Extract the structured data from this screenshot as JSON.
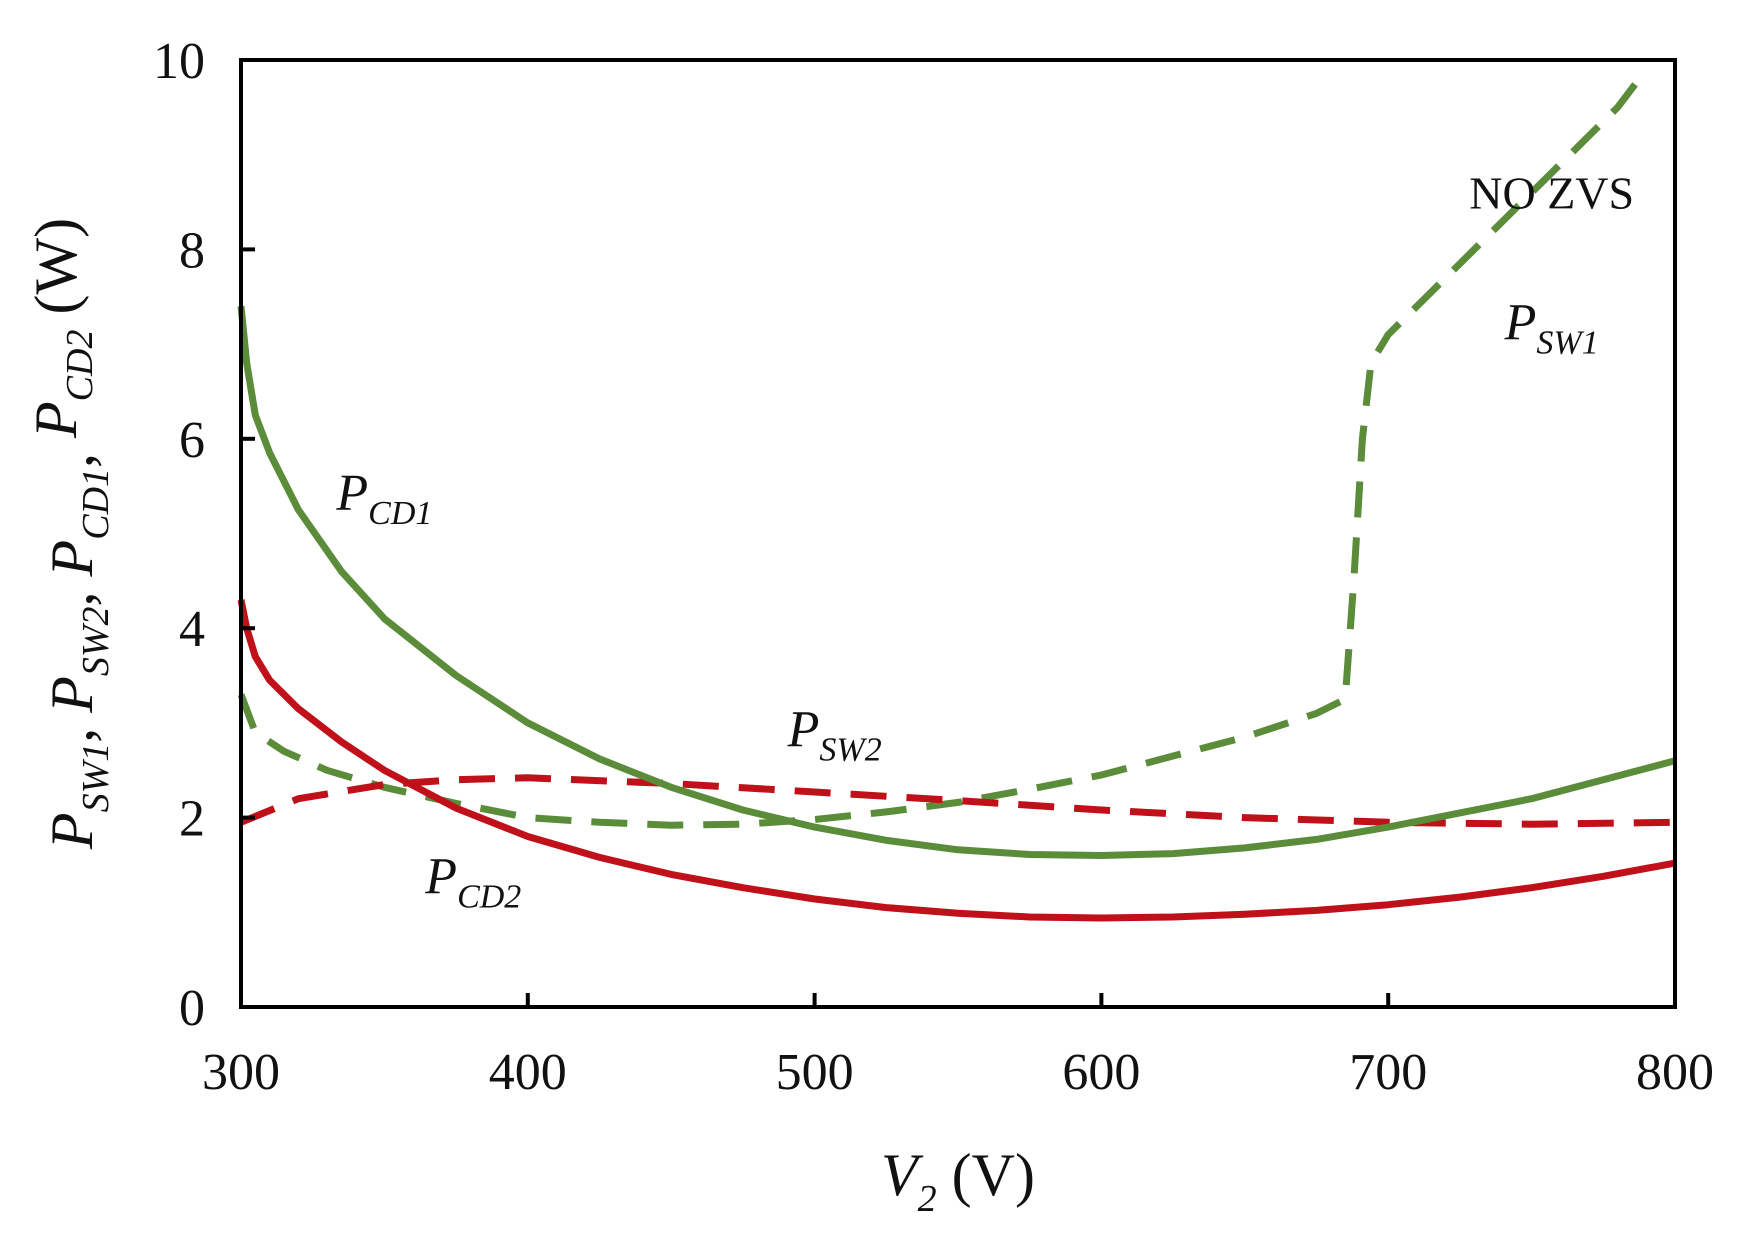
{
  "chart_data": {
    "type": "line",
    "title": "",
    "xlabel": {
      "main": "V",
      "sub": "2",
      "unit": " (V)"
    },
    "ylabel": {
      "parts": [
        {
          "main": "P",
          "sub": "SW1"
        },
        {
          "main": "P",
          "sub": "SW2"
        },
        {
          "main": "P",
          "sub": "CD1"
        },
        {
          "main": "P",
          "sub": "CD2"
        }
      ],
      "separator": ", ",
      "unit": " (W)"
    },
    "xlim": [
      300,
      800
    ],
    "ylim": [
      0,
      10
    ],
    "x_ticks": [
      300,
      400,
      500,
      600,
      700,
      800
    ],
    "y_ticks": [
      0,
      2,
      4,
      6,
      8,
      10
    ],
    "grid": false,
    "legend": "none",
    "series": [
      {
        "name": "P_SW1",
        "label": {
          "main": "P",
          "sub": "SW1"
        },
        "color": "#5b8c3a",
        "style": "dashed",
        "x": [
          300,
          305,
          315,
          330,
          350,
          375,
          400,
          425,
          450,
          475,
          500,
          525,
          550,
          575,
          600,
          625,
          650,
          675,
          685,
          688,
          691,
          694,
          700,
          720,
          740,
          760,
          780,
          790
        ],
        "y": [
          3.3,
          2.9,
          2.7,
          2.5,
          2.32,
          2.15,
          2.0,
          1.95,
          1.92,
          1.93,
          1.98,
          2.06,
          2.16,
          2.3,
          2.45,
          2.65,
          2.85,
          3.1,
          3.25,
          4.5,
          6.0,
          6.8,
          7.1,
          7.7,
          8.3,
          8.9,
          9.5,
          9.9
        ]
      },
      {
        "name": "P_SW2",
        "label": {
          "main": "P",
          "sub": "SW2"
        },
        "color": "#c0101a",
        "style": "dashed",
        "x": [
          300,
          320,
          350,
          375,
          400,
          450,
          500,
          550,
          600,
          650,
          700,
          750,
          800
        ],
        "y": [
          1.95,
          2.2,
          2.35,
          2.4,
          2.42,
          2.36,
          2.27,
          2.18,
          2.08,
          2.0,
          1.95,
          1.93,
          1.95
        ]
      },
      {
        "name": "P_CD1",
        "label": {
          "main": "P",
          "sub": "CD1"
        },
        "color": "#5b8c3a",
        "style": "solid",
        "x": [
          300,
          302,
          305,
          310,
          320,
          335,
          350,
          375,
          400,
          425,
          450,
          475,
          500,
          525,
          550,
          575,
          600,
          625,
          650,
          675,
          700,
          725,
          750,
          775,
          800
        ],
        "y": [
          7.4,
          6.8,
          6.25,
          5.85,
          5.25,
          4.6,
          4.1,
          3.5,
          3.0,
          2.62,
          2.32,
          2.08,
          1.9,
          1.76,
          1.66,
          1.61,
          1.6,
          1.62,
          1.68,
          1.77,
          1.9,
          2.05,
          2.2,
          2.4,
          2.6
        ]
      },
      {
        "name": "P_CD2",
        "label": {
          "main": "P",
          "sub": "CD2"
        },
        "color": "#c0101a",
        "style": "solid",
        "x": [
          300,
          302,
          305,
          310,
          320,
          335,
          350,
          375,
          400,
          425,
          450,
          475,
          500,
          525,
          550,
          575,
          600,
          625,
          650,
          675,
          700,
          725,
          750,
          775,
          800
        ],
        "y": [
          4.3,
          4.0,
          3.7,
          3.45,
          3.15,
          2.8,
          2.5,
          2.1,
          1.8,
          1.58,
          1.4,
          1.26,
          1.14,
          1.05,
          0.99,
          0.95,
          0.94,
          0.95,
          0.98,
          1.02,
          1.08,
          1.16,
          1.26,
          1.38,
          1.52
        ]
      }
    ],
    "annotations": [
      {
        "text": "NO ZVS",
        "x": 757,
        "y": 8.6,
        "anchor": "middle"
      }
    ],
    "series_labels": [
      {
        "series": "P_SW1",
        "x": 757,
        "y": 7.05
      },
      {
        "series": "P_SW2",
        "x": 507,
        "y": 2.75
      },
      {
        "series": "P_CD1",
        "x": 350,
        "y": 5.25
      },
      {
        "series": "P_CD2",
        "x": 381,
        "y": 1.2
      }
    ]
  }
}
